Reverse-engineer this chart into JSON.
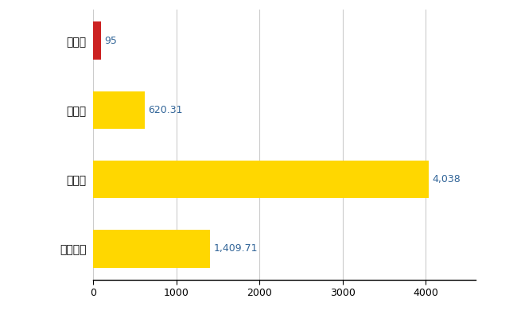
{
  "categories": [
    "全国平均",
    "県最大",
    "県平均",
    "戸沢村"
  ],
  "values": [
    1409.71,
    4038,
    620.31,
    95
  ],
  "bar_colors": [
    "#FFD700",
    "#FFD700",
    "#FFD700",
    "#CC2222"
  ],
  "value_labels": [
    "1,409.71",
    "4,038",
    "620.31",
    "95"
  ],
  "xlim": [
    0,
    4600
  ],
  "xticks": [
    0,
    1000,
    2000,
    3000,
    4000
  ],
  "xtick_labels": [
    "0",
    "1000",
    "2000",
    "3000",
    "4000"
  ],
  "figsize": [
    6.5,
    4.0
  ],
  "dpi": 100,
  "background_color": "#FFFFFF",
  "grid_color": "#CCCCCC",
  "bar_height": 0.55,
  "label_fontsize": 9,
  "tick_fontsize": 9,
  "ylabel_fontsize": 10
}
